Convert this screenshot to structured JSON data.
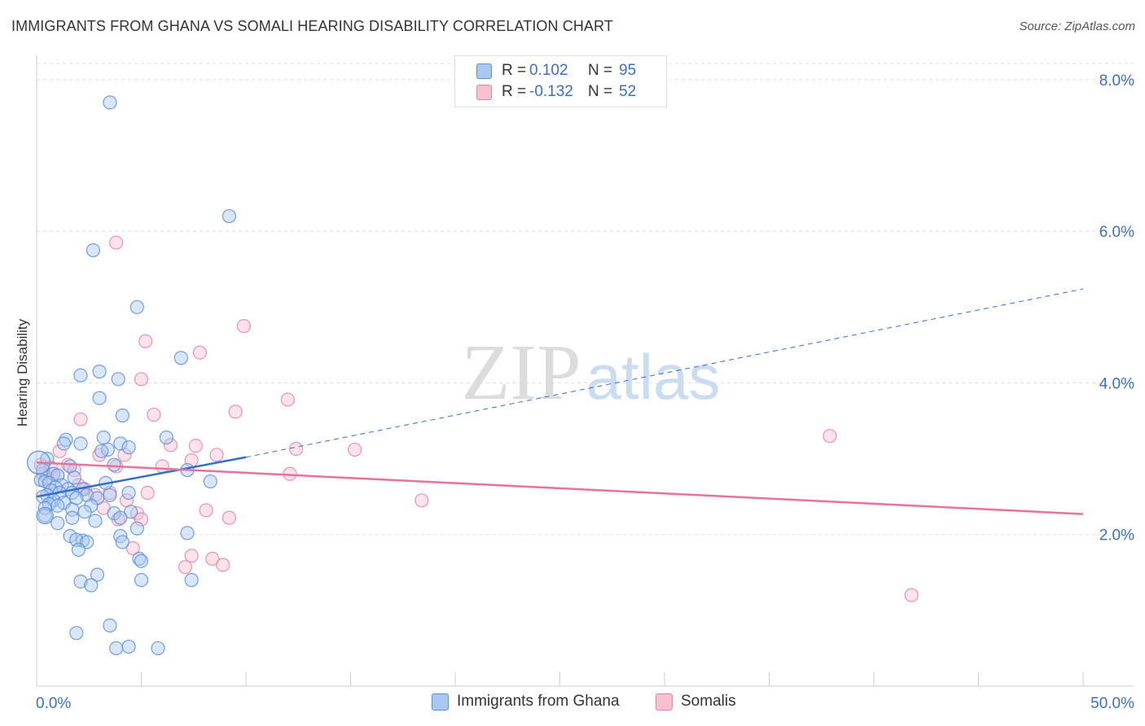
{
  "title": "IMMIGRANTS FROM GHANA VS SOMALI HEARING DISABILITY CORRELATION CHART",
  "source": "Source: ZipAtlas.com",
  "watermark": {
    "zip": "ZIP",
    "atlas": "atlas"
  },
  "legend_top": {
    "rows": [
      {
        "r_label": "R =",
        "r_value": "0.102",
        "n_label": "N =",
        "n_value": "95"
      },
      {
        "r_label": "R =",
        "r_value": "-0.132",
        "n_label": "N =",
        "n_value": "52"
      }
    ]
  },
  "legend_bottom": [
    "Immigrants from Ghana",
    "Somalis"
  ],
  "colors": {
    "ghana_fill": "#a9c8f0",
    "ghana_stroke": "#5b8fd8",
    "ghana_line": "#2f6fcf",
    "somali_fill": "#f8bfd0",
    "somali_stroke": "#e8839f",
    "somali_line": "#e8729a",
    "tick_text": "#3a70c4",
    "grid": "#e0e0e0"
  },
  "chart_data": {
    "type": "scatter",
    "title": "IMMIGRANTS FROM GHANA VS SOMALI HEARING DISABILITY CORRELATION CHART",
    "xlabel": "",
    "ylabel": "Hearing Disability",
    "xlim": [
      0,
      50
    ],
    "ylim": [
      0,
      8.3
    ],
    "x_tick_labels": [
      "0.0%",
      "50.0%"
    ],
    "y_ticks": [
      2,
      4,
      6,
      8
    ],
    "y_tick_labels": [
      "2.0%",
      "4.0%",
      "6.0%",
      "8.0%"
    ],
    "grid": true,
    "series": [
      {
        "name": "Immigrants from Ghana",
        "r": 0.102,
        "n": 95,
        "trend": {
          "x": [
            0,
            10
          ],
          "y": [
            2.5,
            3.02
          ],
          "dashed_to": [
            50,
            5.24
          ]
        },
        "points": [
          [
            3.5,
            7.7
          ],
          [
            9.2,
            6.2
          ],
          [
            2.7,
            5.75
          ],
          [
            4.8,
            5.0
          ],
          [
            6.9,
            4.33
          ],
          [
            3.0,
            4.15
          ],
          [
            2.1,
            4.1
          ],
          [
            3.9,
            4.05
          ],
          [
            3.0,
            3.8
          ],
          [
            4.1,
            3.57
          ],
          [
            6.2,
            3.28
          ],
          [
            3.2,
            3.28
          ],
          [
            1.4,
            3.25
          ],
          [
            4.0,
            3.2
          ],
          [
            1.3,
            3.2
          ],
          [
            2.1,
            3.2
          ],
          [
            4.4,
            3.15
          ],
          [
            3.4,
            3.12
          ],
          [
            3.1,
            3.1
          ],
          [
            0.5,
            3.0
          ],
          [
            3.7,
            2.92
          ],
          [
            1.6,
            2.9
          ],
          [
            0.3,
            2.85
          ],
          [
            7.2,
            2.85
          ],
          [
            0.8,
            2.8
          ],
          [
            1.0,
            2.78
          ],
          [
            1.8,
            2.75
          ],
          [
            0.2,
            2.72
          ],
          [
            0.4,
            2.7
          ],
          [
            0.6,
            2.68
          ],
          [
            3.3,
            2.68
          ],
          [
            8.3,
            2.7
          ],
          [
            1.2,
            2.65
          ],
          [
            0.9,
            2.62
          ],
          [
            1.5,
            2.6
          ],
          [
            2.2,
            2.6
          ],
          [
            0.7,
            2.58
          ],
          [
            1.1,
            2.55
          ],
          [
            1.7,
            2.55
          ],
          [
            0.5,
            2.52
          ],
          [
            2.4,
            2.52
          ],
          [
            4.4,
            2.55
          ],
          [
            3.5,
            2.52
          ],
          [
            0.3,
            2.5
          ],
          [
            1.9,
            2.48
          ],
          [
            2.9,
            2.48
          ],
          [
            0.8,
            2.45
          ],
          [
            1.3,
            2.42
          ],
          [
            0.6,
            2.4
          ],
          [
            1.0,
            2.38
          ],
          [
            2.6,
            2.38
          ],
          [
            0.4,
            2.35
          ],
          [
            1.7,
            2.33
          ],
          [
            2.3,
            2.3
          ],
          [
            4.5,
            2.3
          ],
          [
            3.7,
            2.28
          ],
          [
            0.4,
            2.25
          ],
          [
            1.7,
            2.22
          ],
          [
            4.0,
            2.22
          ],
          [
            2.8,
            2.18
          ],
          [
            1.0,
            2.15
          ],
          [
            4.8,
            2.08
          ],
          [
            7.2,
            2.02
          ],
          [
            1.6,
            1.98
          ],
          [
            4.0,
            1.98
          ],
          [
            2.2,
            1.92
          ],
          [
            1.9,
            1.93
          ],
          [
            2.4,
            1.9
          ],
          [
            4.1,
            1.9
          ],
          [
            2.0,
            1.8
          ],
          [
            4.9,
            1.68
          ],
          [
            5.0,
            1.65
          ],
          [
            2.9,
            1.47
          ],
          [
            5.0,
            1.4
          ],
          [
            7.4,
            1.4
          ],
          [
            2.1,
            1.38
          ],
          [
            2.6,
            1.33
          ],
          [
            3.5,
            0.8
          ],
          [
            1.9,
            0.7
          ],
          [
            4.4,
            0.52
          ],
          [
            5.8,
            0.5
          ],
          [
            3.8,
            0.5
          ]
        ]
      },
      {
        "name": "Somalis",
        "r": -0.132,
        "n": 52,
        "trend": {
          "x": [
            0,
            50
          ],
          "y": [
            2.95,
            2.27
          ]
        },
        "points": [
          [
            3.8,
            5.85
          ],
          [
            9.9,
            4.75
          ],
          [
            5.2,
            4.55
          ],
          [
            7.8,
            4.4
          ],
          [
            5.0,
            4.05
          ],
          [
            12.0,
            3.78
          ],
          [
            9.5,
            3.62
          ],
          [
            5.6,
            3.58
          ],
          [
            2.1,
            3.52
          ],
          [
            37.9,
            3.3
          ],
          [
            12.4,
            3.13
          ],
          [
            15.2,
            3.12
          ],
          [
            6.4,
            3.18
          ],
          [
            7.6,
            3.17
          ],
          [
            8.6,
            3.05
          ],
          [
            1.1,
            3.1
          ],
          [
            3.0,
            3.05
          ],
          [
            4.2,
            3.05
          ],
          [
            7.4,
            2.98
          ],
          [
            0.2,
            2.92
          ],
          [
            1.5,
            2.92
          ],
          [
            3.8,
            2.9
          ],
          [
            6.0,
            2.9
          ],
          [
            0.7,
            2.88
          ],
          [
            1.8,
            2.85
          ],
          [
            0.3,
            2.8
          ],
          [
            12.1,
            2.8
          ],
          [
            1.0,
            2.78
          ],
          [
            0.5,
            2.75
          ],
          [
            2.0,
            2.65
          ],
          [
            2.3,
            2.6
          ],
          [
            5.3,
            2.55
          ],
          [
            3.5,
            2.55
          ],
          [
            2.8,
            2.52
          ],
          [
            4.3,
            2.45
          ],
          [
            18.4,
            2.45
          ],
          [
            3.2,
            2.35
          ],
          [
            8.1,
            2.32
          ],
          [
            4.8,
            2.28
          ],
          [
            9.2,
            2.22
          ],
          [
            3.9,
            2.2
          ],
          [
            5.0,
            2.2
          ],
          [
            4.6,
            1.82
          ],
          [
            7.4,
            1.72
          ],
          [
            8.4,
            1.68
          ],
          [
            7.1,
            1.57
          ],
          [
            8.9,
            1.6
          ],
          [
            41.8,
            1.2
          ]
        ]
      }
    ]
  }
}
